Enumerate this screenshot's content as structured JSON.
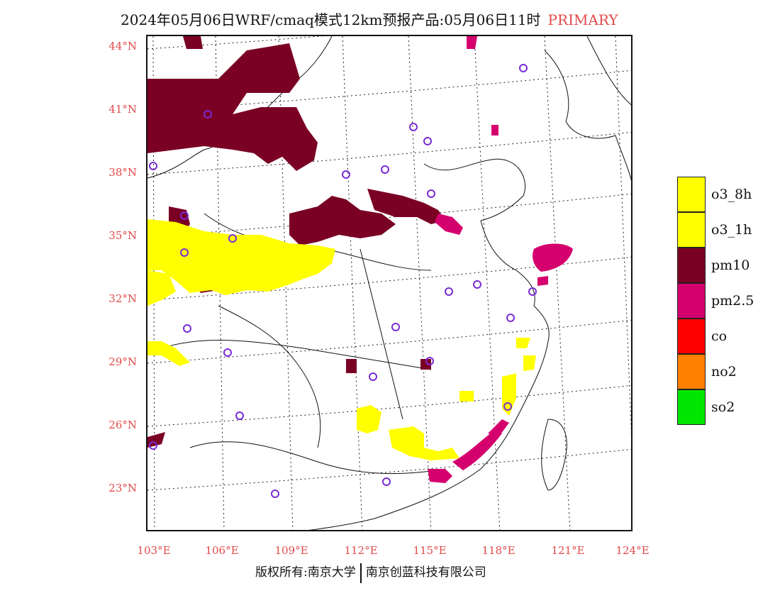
{
  "header": {
    "title": "2024年05月06日WRF/cmaq模式12km预报产品:05月06日11时",
    "tag": "PRIMARY"
  },
  "map": {
    "lat_labels": [
      "44°N",
      "41°N",
      "38°N",
      "35°N",
      "32°N",
      "29°N",
      "26°N",
      "23°N"
    ],
    "lon_labels": [
      "103°E",
      "106°E",
      "109°E",
      "112°E",
      "115°E",
      "118°E",
      "121°E",
      "124°E"
    ]
  },
  "legend": {
    "items": [
      {
        "label": "o3_8h",
        "color": "#ffff00"
      },
      {
        "label": "o3_1h",
        "color": "#ffff00"
      },
      {
        "label": "pm10",
        "color": "#7a0024"
      },
      {
        "label": "pm2.5",
        "color": "#d4006e"
      },
      {
        "label": "co",
        "color": "#ff0000"
      },
      {
        "label": "no2",
        "color": "#ff7f00"
      },
      {
        "label": "so2",
        "color": "#00e600"
      }
    ]
  },
  "footer": {
    "copyright": "版权所有:南京大学",
    "company": "南京创蓝科技有限公司"
  },
  "colors": {
    "pm10": "#7a0024",
    "pm25": "#d4006e",
    "o3": "#ffff00",
    "station": "#7a2bd6",
    "label": "#e24a4a"
  }
}
